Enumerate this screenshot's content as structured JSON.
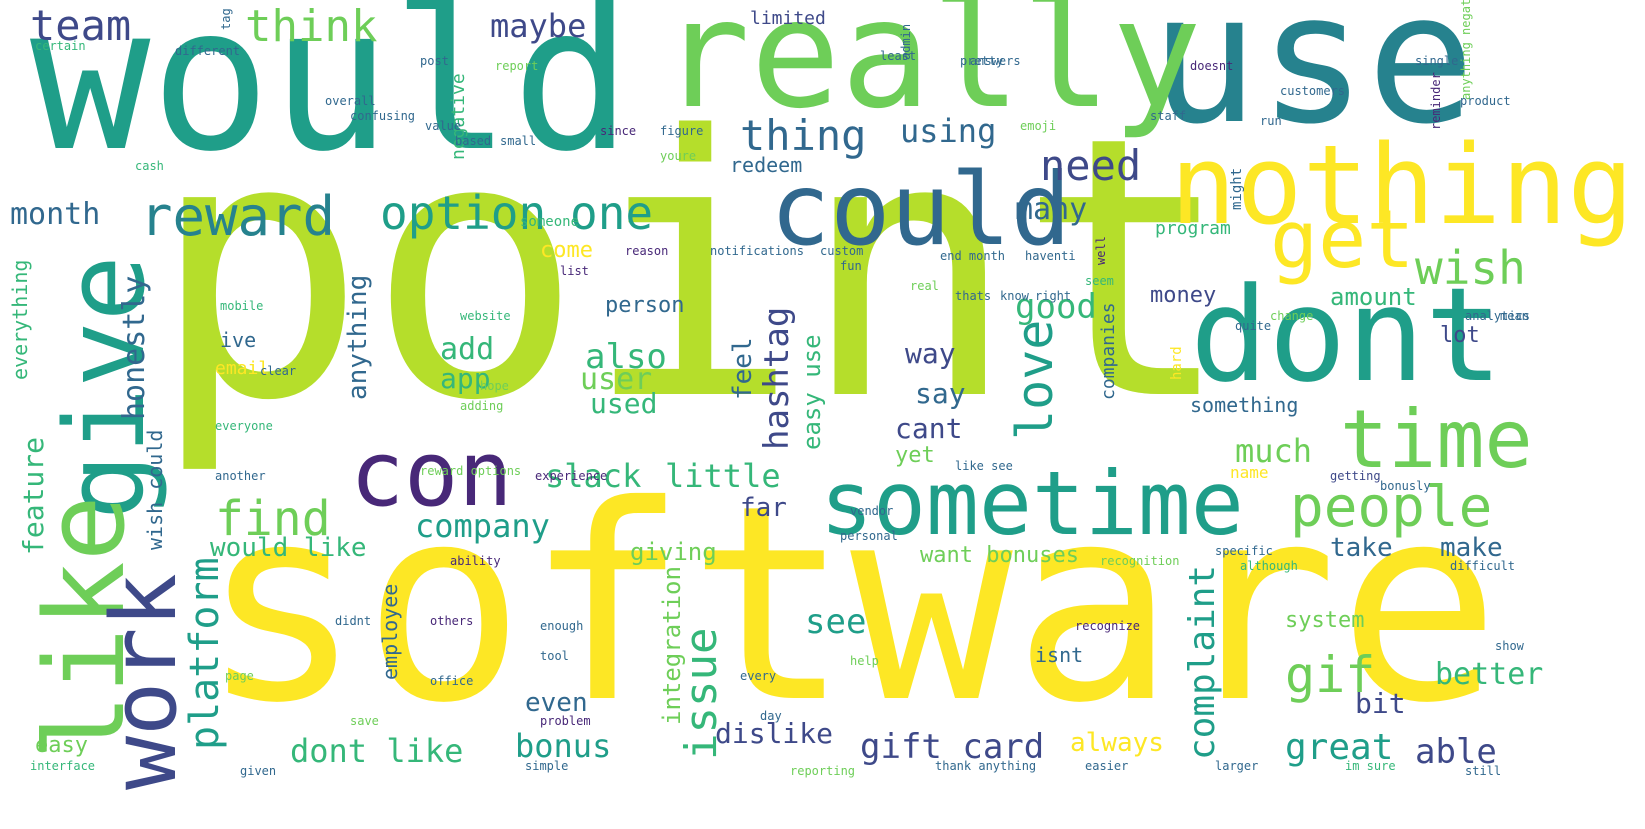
{
  "palette": {
    "yellow": "#fde725",
    "lime": "#b5de2b",
    "green": "#6ece58",
    "teal": "#35b779",
    "aqua": "#1f9e89",
    "blue": "#26828e",
    "steel": "#31688e",
    "indigo": "#3e4989",
    "purple": "#482878",
    "dark": "#440154"
  },
  "words": [
    "would",
    "use",
    "really",
    "point",
    "software",
    "nothing",
    "could",
    "dont",
    "give",
    "like",
    "con",
    "sometime",
    "time",
    "get",
    "people",
    "work",
    "reward",
    "option",
    "one",
    "thing",
    "team",
    "think",
    "maybe",
    "need",
    "wish",
    "using",
    "month",
    "find",
    "slack",
    "little",
    "company",
    "love",
    "hashtag",
    "good",
    "many",
    "add",
    "app",
    "also",
    "user",
    "used",
    "issue",
    "platform",
    "feature",
    "honestly",
    "anything",
    "everything",
    "dont like",
    "would like",
    "gift card",
    "great",
    "able",
    "bonus",
    "bit",
    "gif",
    "better",
    "complaint",
    "see",
    "make",
    "take",
    "far",
    "much",
    "cant",
    "say",
    "way",
    "amount",
    "money",
    "feel",
    "easy use",
    "person",
    "come",
    "redeem",
    "limited",
    "always",
    "dislike",
    "even",
    "easy",
    "email",
    "giving",
    "want bonuses",
    "something",
    "lot",
    "isnt",
    "yet",
    "employee",
    "integration",
    "system",
    "ive",
    "negative",
    "wish could",
    "companies",
    "program",
    "someone",
    "hard",
    "name",
    "mobile",
    "website",
    "cash",
    "recognition",
    "experience",
    "although",
    "ability",
    "enough",
    "tool",
    "office",
    "problem",
    "day",
    "reporting",
    "simple",
    "given",
    "interface",
    "might",
    "every",
    "others",
    "didnt",
    "show",
    "page",
    "help",
    "save",
    "thank anything",
    "easier",
    "larger",
    "im sure",
    "still",
    "anything negative",
    "product",
    "single",
    "post",
    "report",
    "staff",
    "run",
    "figure",
    "youre",
    "since",
    "small",
    "value",
    "based",
    "overall",
    "confusing",
    "least",
    "admin",
    "pretty",
    "customers",
    "reminder",
    "analytics",
    "change",
    "quite",
    "right",
    "seem",
    "well",
    "haventi",
    "end month",
    "reason",
    "notifications",
    "custom",
    "everyone",
    "certain",
    "different",
    "doesnt",
    "reward options",
    "list",
    "tag",
    "fun",
    "real",
    "thats",
    "know",
    "another",
    "adding",
    "clear",
    "getting",
    "bonusly",
    "recognize",
    "answers",
    "personal",
    "like see",
    "vendor",
    "specific",
    "difficult",
    "mean",
    "hope",
    "emoji"
  ]
}
